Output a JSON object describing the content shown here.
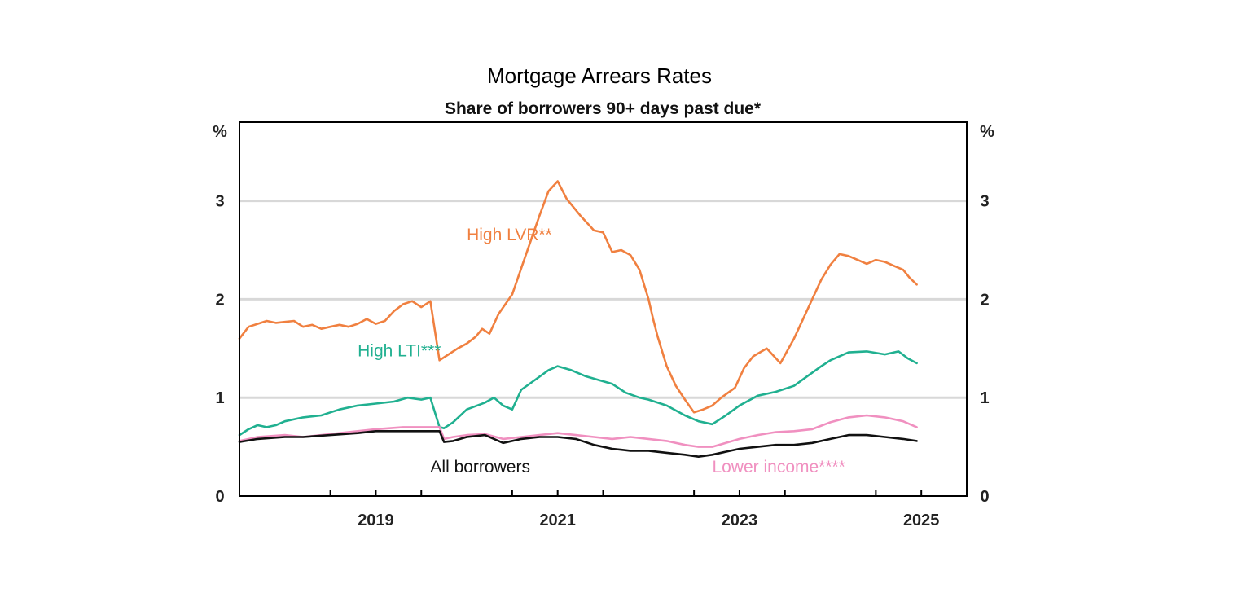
{
  "chart_data": {
    "type": "line",
    "title": "Mortgage Arrears Rates",
    "subtitle": "Share of borrowers 90+ days past due*",
    "ylabel_left": "%",
    "ylabel_right": "%",
    "ylim": [
      0,
      3.8
    ],
    "xlim": [
      2017.5,
      2025.5
    ],
    "yticks": [
      0,
      1,
      2,
      3
    ],
    "ytick_labels": [
      "0",
      "1",
      "2",
      "3"
    ],
    "xticks": [
      2019,
      2021,
      2023,
      2025
    ],
    "xtick_labels": [
      "2019",
      "2021",
      "2023",
      "2025"
    ],
    "minor_xticks": [
      2018.5,
      2019.5,
      2020.5,
      2021.5,
      2022.5,
      2023.5,
      2024.5
    ],
    "gridlines": true,
    "series": [
      {
        "name": "High LVR**",
        "color": "#f08040",
        "x": [
          2017.5,
          2017.6,
          2017.7,
          2017.8,
          2017.9,
          2018.0,
          2018.1,
          2018.2,
          2018.3,
          2018.4,
          2018.5,
          2018.6,
          2018.7,
          2018.8,
          2018.9,
          2019.0,
          2019.1,
          2019.2,
          2019.3,
          2019.4,
          2019.5,
          2019.6,
          2019.7,
          2019.8,
          2019.9,
          2020.0,
          2020.1,
          2020.17,
          2020.25,
          2020.35,
          2020.5,
          2020.65,
          2020.8,
          2020.9,
          2021.0,
          2021.1,
          2021.25,
          2021.4,
          2021.5,
          2021.6,
          2021.7,
          2021.8,
          2021.9,
          2022.0,
          2022.05,
          2022.1,
          2022.2,
          2022.3,
          2022.4,
          2022.5,
          2022.6,
          2022.7,
          2022.8,
          2022.95,
          2023.05,
          2023.15,
          2023.3,
          2023.45,
          2023.6,
          2023.7,
          2023.8,
          2023.9,
          2024.0,
          2024.1,
          2024.2,
          2024.3,
          2024.4,
          2024.5,
          2024.6,
          2024.7,
          2024.8,
          2024.87,
          2024.95
        ],
        "values": [
          1.6,
          1.72,
          1.75,
          1.78,
          1.76,
          1.77,
          1.78,
          1.72,
          1.74,
          1.7,
          1.72,
          1.74,
          1.72,
          1.75,
          1.8,
          1.75,
          1.78,
          1.88,
          1.95,
          1.98,
          1.92,
          1.98,
          1.38,
          1.44,
          1.5,
          1.55,
          1.62,
          1.7,
          1.65,
          1.85,
          2.05,
          2.45,
          2.85,
          3.1,
          3.2,
          3.02,
          2.85,
          2.7,
          2.68,
          2.48,
          2.5,
          2.45,
          2.3,
          2.0,
          1.8,
          1.62,
          1.32,
          1.12,
          0.98,
          0.85,
          0.88,
          0.92,
          1.0,
          1.1,
          1.3,
          1.42,
          1.5,
          1.35,
          1.6,
          1.8,
          2.0,
          2.2,
          2.35,
          2.46,
          2.44,
          2.4,
          2.36,
          2.4,
          2.38,
          2.34,
          2.3,
          2.22,
          2.15
        ]
      },
      {
        "name": "High LTI***",
        "color": "#20b090",
        "x": [
          2017.5,
          2017.6,
          2017.7,
          2017.8,
          2017.9,
          2018.0,
          2018.2,
          2018.4,
          2018.5,
          2018.6,
          2018.8,
          2019.0,
          2019.2,
          2019.35,
          2019.5,
          2019.6,
          2019.7,
          2019.75,
          2019.85,
          2020.0,
          2020.2,
          2020.3,
          2020.4,
          2020.5,
          2020.6,
          2020.75,
          2020.9,
          2021.0,
          2021.15,
          2021.3,
          2021.45,
          2021.6,
          2021.75,
          2021.9,
          2022.0,
          2022.2,
          2022.4,
          2022.55,
          2022.7,
          2022.85,
          2023.0,
          2023.2,
          2023.4,
          2023.6,
          2023.75,
          2023.9,
          2024.0,
          2024.2,
          2024.4,
          2024.6,
          2024.75,
          2024.85,
          2024.95
        ],
        "values": [
          0.62,
          0.68,
          0.72,
          0.7,
          0.72,
          0.76,
          0.8,
          0.82,
          0.85,
          0.88,
          0.92,
          0.94,
          0.96,
          1.0,
          0.98,
          1.0,
          0.7,
          0.69,
          0.75,
          0.88,
          0.95,
          1.0,
          0.92,
          0.88,
          1.08,
          1.18,
          1.28,
          1.32,
          1.28,
          1.22,
          1.18,
          1.14,
          1.05,
          1.0,
          0.98,
          0.92,
          0.82,
          0.76,
          0.73,
          0.82,
          0.92,
          1.02,
          1.06,
          1.12,
          1.22,
          1.32,
          1.38,
          1.46,
          1.47,
          1.44,
          1.47,
          1.4,
          1.35
        ]
      },
      {
        "name": "Lower income****",
        "color": "#f090c0",
        "x": [
          2017.5,
          2017.7,
          2018.0,
          2018.2,
          2018.5,
          2018.8,
          2019.0,
          2019.3,
          2019.5,
          2019.7,
          2019.75,
          2019.85,
          2020.0,
          2020.2,
          2020.4,
          2020.6,
          2020.8,
          2021.0,
          2021.2,
          2021.4,
          2021.6,
          2021.8,
          2022.0,
          2022.2,
          2022.4,
          2022.55,
          2022.7,
          2022.85,
          2023.0,
          2023.2,
          2023.4,
          2023.6,
          2023.8,
          2024.0,
          2024.2,
          2024.4,
          2024.6,
          2024.8,
          2024.95
        ],
        "values": [
          0.56,
          0.6,
          0.62,
          0.6,
          0.63,
          0.66,
          0.68,
          0.7,
          0.7,
          0.7,
          0.58,
          0.6,
          0.62,
          0.63,
          0.58,
          0.6,
          0.62,
          0.64,
          0.62,
          0.6,
          0.58,
          0.6,
          0.58,
          0.56,
          0.52,
          0.5,
          0.5,
          0.54,
          0.58,
          0.62,
          0.65,
          0.66,
          0.68,
          0.75,
          0.8,
          0.82,
          0.8,
          0.76,
          0.7
        ]
      },
      {
        "name": "All borrowers",
        "color": "#111111",
        "x": [
          2017.5,
          2017.7,
          2018.0,
          2018.2,
          2018.5,
          2018.8,
          2019.0,
          2019.3,
          2019.5,
          2019.7,
          2019.75,
          2019.85,
          2020.0,
          2020.2,
          2020.4,
          2020.6,
          2020.8,
          2021.0,
          2021.2,
          2021.4,
          2021.6,
          2021.8,
          2022.0,
          2022.2,
          2022.4,
          2022.55,
          2022.7,
          2022.85,
          2023.0,
          2023.2,
          2023.4,
          2023.6,
          2023.8,
          2024.0,
          2024.2,
          2024.4,
          2024.6,
          2024.8,
          2024.95
        ],
        "values": [
          0.55,
          0.58,
          0.6,
          0.6,
          0.62,
          0.64,
          0.66,
          0.66,
          0.66,
          0.66,
          0.55,
          0.56,
          0.6,
          0.62,
          0.54,
          0.58,
          0.6,
          0.6,
          0.58,
          0.52,
          0.48,
          0.46,
          0.46,
          0.44,
          0.42,
          0.4,
          0.42,
          0.45,
          0.48,
          0.5,
          0.52,
          0.52,
          0.54,
          0.58,
          0.62,
          0.62,
          0.6,
          0.58,
          0.56
        ]
      }
    ],
    "annotations": [
      {
        "text": "High LVR**",
        "series": "High LVR**",
        "color": "#f08040",
        "x": 2020.0,
        "y": 2.6
      },
      {
        "text": "High LTI***",
        "series": "High LTI***",
        "color": "#20b090",
        "x": 2018.8,
        "y": 1.42
      },
      {
        "text": "All borrowers",
        "series": "All borrowers",
        "color": "#111111",
        "x": 2019.6,
        "y": 0.24
      },
      {
        "text": "Lower income****",
        "series": "Lower income****",
        "color": "#f090c0",
        "x": 2022.7,
        "y": 0.24
      }
    ]
  }
}
